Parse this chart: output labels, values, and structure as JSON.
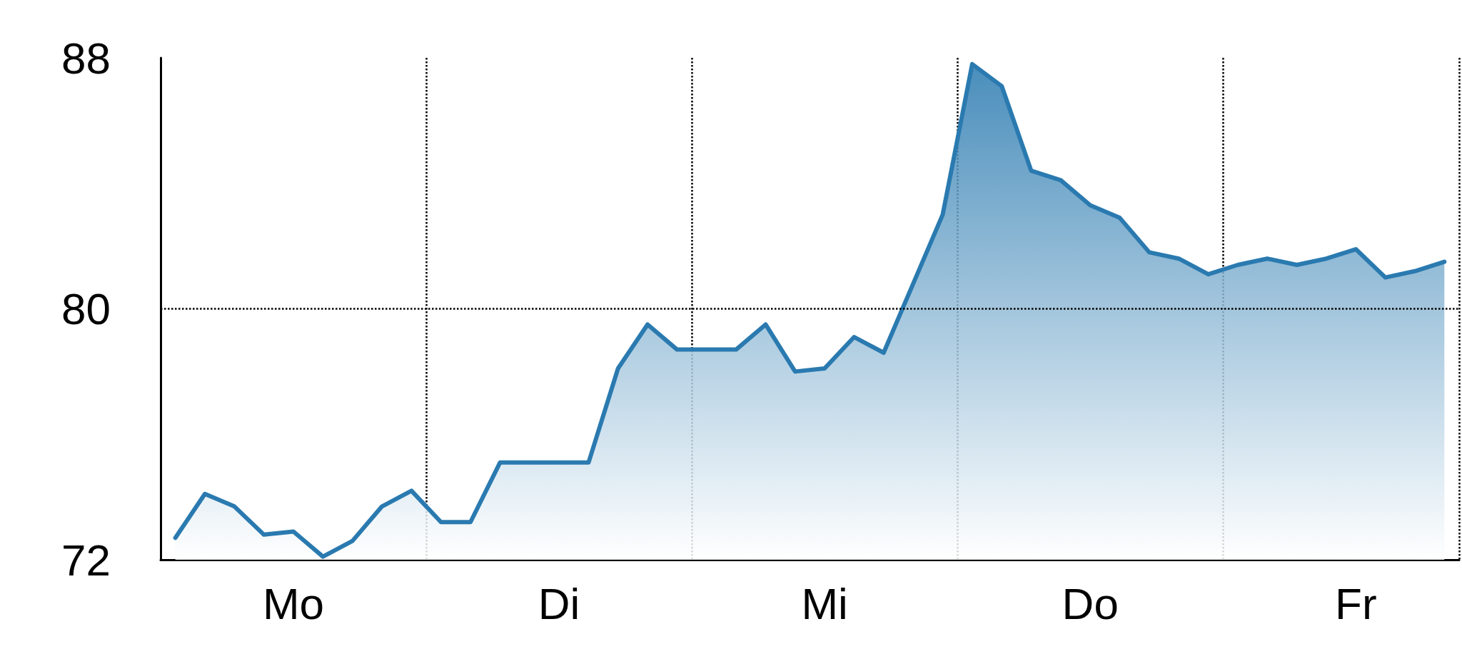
{
  "chart_data": {
    "type": "area",
    "categories": [
      null,
      null,
      null,
      null,
      "Mo",
      null,
      null,
      null,
      null,
      null,
      null,
      null,
      null,
      "Di",
      null,
      null,
      null,
      null,
      null,
      null,
      null,
      null,
      "Mi",
      null,
      null,
      null,
      null,
      null,
      null,
      null,
      null,
      "Do",
      null,
      null,
      null,
      null,
      null,
      null,
      null,
      null,
      "Fr",
      null,
      null,
      null
    ],
    "series": [
      {
        "color": "#2a7ab0",
        "values": [
          72.7,
          74.1,
          73.7,
          72.8,
          72.9,
          72.1,
          72.6,
          73.7,
          74.2,
          73.2,
          73.2,
          75.1,
          75.1,
          75.1,
          75.1,
          78.1,
          79.5,
          78.7,
          78.7,
          78.7,
          79.5,
          78.0,
          78.1,
          79.1,
          78.6,
          80.8,
          83.0,
          87.8,
          87.1,
          84.4,
          84.1,
          83.3,
          82.9,
          81.8,
          81.6,
          81.1,
          81.4,
          81.6,
          81.4,
          81.6,
          81.9,
          81.0,
          81.2,
          81.5
        ]
      }
    ],
    "ylim": [
      72,
      88
    ],
    "yticks": [
      72,
      80,
      88
    ],
    "ref_lines": [
      {
        "axis": "y",
        "value": 80,
        "line_style": "dotted",
        "color": "#000000"
      }
    ],
    "grid": "x",
    "marker": "none",
    "line_style": "solid"
  }
}
